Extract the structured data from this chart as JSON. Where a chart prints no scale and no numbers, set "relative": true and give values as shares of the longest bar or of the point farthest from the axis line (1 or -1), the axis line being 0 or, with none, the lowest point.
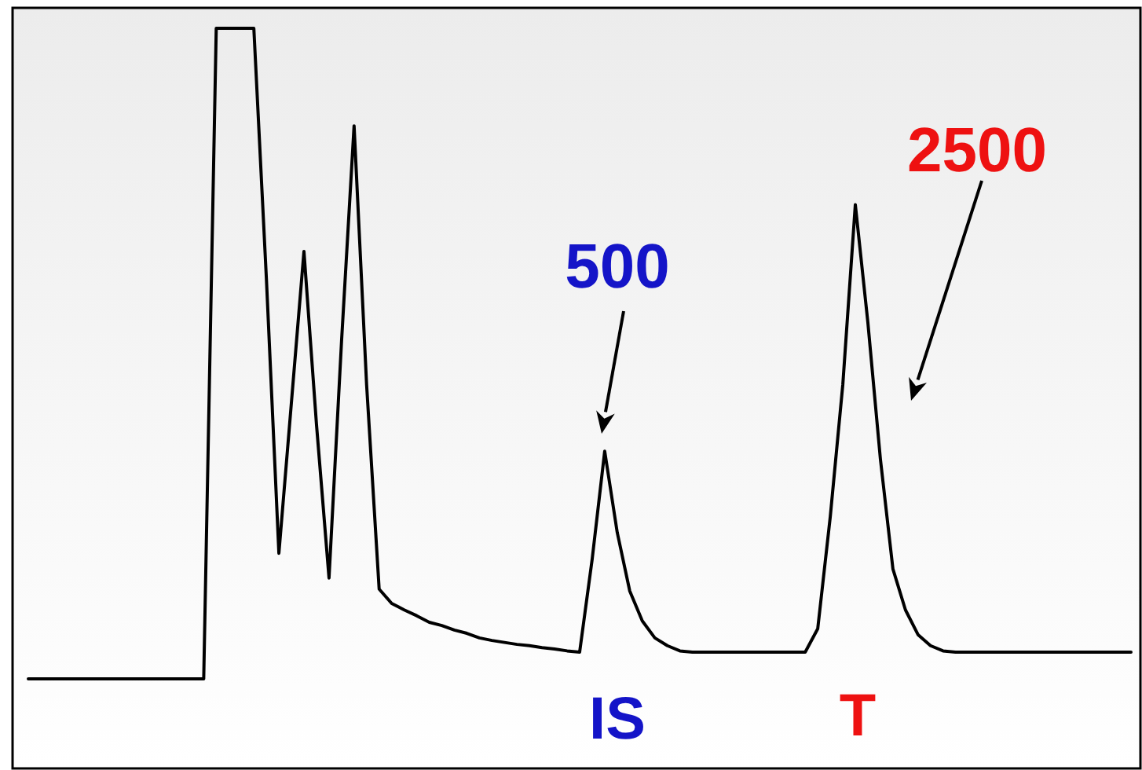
{
  "chart_data": {
    "type": "line",
    "relative": true,
    "line_style": "solid",
    "categories": [
      null,
      null,
      null,
      null,
      null,
      null,
      null,
      null,
      null,
      null,
      null,
      null,
      null,
      null,
      null,
      null,
      null,
      null,
      null,
      null,
      null,
      null,
      null,
      null,
      null,
      null,
      null,
      null,
      null,
      null,
      null,
      null,
      null,
      null,
      null,
      null,
      null,
      null,
      null,
      null,
      null,
      null,
      null,
      null,
      null,
      null,
      null,
      null,
      null,
      null,
      null,
      null,
      null,
      null,
      null,
      null,
      null,
      null,
      null,
      null,
      null,
      null,
      null,
      null,
      null,
      null,
      null,
      null,
      null,
      null,
      null,
      null,
      null,
      null,
      null,
      null,
      null,
      null,
      null,
      null,
      null,
      null,
      null,
      null,
      null,
      null,
      null,
      null,
      null
    ],
    "series": [
      {
        "color": "#000000",
        "values": [
          0,
          0,
          0,
          0,
          0,
          0,
          0,
          0,
          0,
          0,
          0,
          0,
          0,
          0,
          0,
          1,
          1,
          1,
          1,
          0.616,
          0.193,
          0.425,
          0.657,
          0.391,
          0.155,
          0.519,
          0.85,
          0.452,
          0.138,
          0.116,
          0.106,
          0.097,
          0.087,
          0.082,
          0.075,
          0.07,
          0.063,
          0.059,
          0.056,
          0.053,
          0.051,
          0.048,
          0.046,
          0.043,
          0.041,
          0.184,
          0.35,
          0.225,
          0.135,
          0.089,
          0.063,
          0.051,
          0.043,
          0.041,
          0.041,
          0.041,
          0.041,
          0.041,
          0.041,
          0.041,
          0.041,
          0.041,
          0.041,
          0.077,
          0.249,
          0.452,
          0.729,
          0.548,
          0.338,
          0.169,
          0.106,
          0.068,
          0.051,
          0.043,
          0.041,
          0.041,
          0.041,
          0.041,
          0.041,
          0.041,
          0.041,
          0.041,
          0.041,
          0.041,
          0.041,
          0.041,
          0.041,
          0.041,
          0.041
        ]
      }
    ],
    "annotations": [
      "500",
      "IS",
      "2500",
      "T"
    ]
  }
}
